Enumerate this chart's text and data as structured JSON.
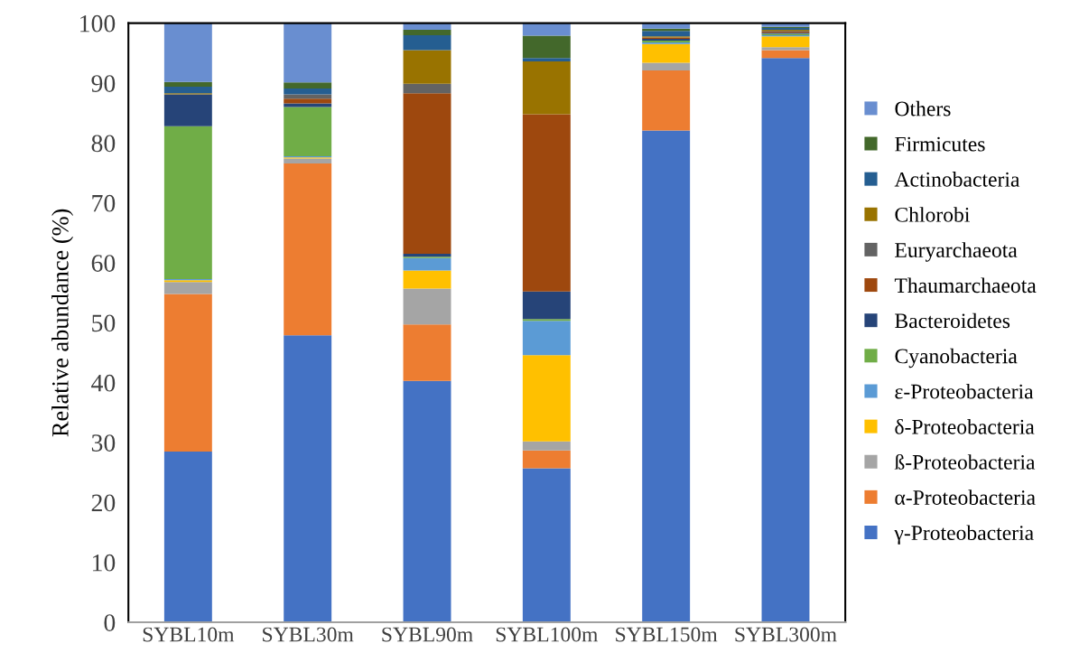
{
  "chart_data": {
    "type": "bar",
    "stacked": true,
    "ylabel": "Relative abundance (%)",
    "categories": [
      "SYBL10m",
      "SYBL30m",
      "SYBL90m",
      "SYBL100m",
      "SYBL150m",
      "SYBL300m"
    ],
    "ylim": [
      0,
      100
    ],
    "yticks": [
      0,
      10,
      20,
      30,
      40,
      50,
      60,
      70,
      80,
      90,
      100
    ],
    "grid": false,
    "legend": "right",
    "series": [
      {
        "name": "γ-Proteobacteria",
        "color": "#4472c4",
        "values": [
          28.5,
          47.9,
          40.3,
          25.7,
          82.1,
          94.2
        ]
      },
      {
        "name": "α-Proteobacteria",
        "color": "#ed7d31",
        "values": [
          26.3,
          28.7,
          9.4,
          3.0,
          10.0,
          1.3
        ]
      },
      {
        "name": "ß-Proteobacteria",
        "color": "#a5a5a5",
        "values": [
          2.0,
          0.8,
          6.0,
          1.5,
          1.3,
          0.5
        ]
      },
      {
        "name": "δ-Proteobacteria",
        "color": "#ffc000",
        "values": [
          0.3,
          0.2,
          3.0,
          14.4,
          3.1,
          1.8
        ]
      },
      {
        "name": "ε-Proteobacteria",
        "color": "#5b9bd5",
        "values": [
          0.2,
          0.2,
          2.1,
          5.7,
          0.3,
          0.2
        ]
      },
      {
        "name": "Cyanobacteria",
        "color": "#70ad47",
        "values": [
          25.5,
          8.2,
          0.2,
          0.3,
          0.3,
          0.2
        ]
      },
      {
        "name": "Bacteroidetes",
        "color": "#264478",
        "values": [
          5.3,
          0.6,
          0.5,
          4.6,
          0.3,
          0.2
        ]
      },
      {
        "name": "Thaumarchaeota",
        "color": "#9e480e",
        "values": [
          0,
          0.8,
          26.8,
          29.6,
          0.2,
          0.2
        ]
      },
      {
        "name": "Euryarchaeota",
        "color": "#636363",
        "values": [
          0,
          0.7,
          1.6,
          0,
          0,
          0.1
        ]
      },
      {
        "name": "Chlorobi",
        "color": "#997300",
        "values": [
          0.2,
          0,
          5.6,
          8.8,
          0.2,
          0.2
        ]
      },
      {
        "name": "Actinobacteria",
        "color": "#255e91",
        "values": [
          1.1,
          1.0,
          2.5,
          0.6,
          0.9,
          0.3
        ]
      },
      {
        "name": "Firmicutes",
        "color": "#43682b",
        "values": [
          0.8,
          1.0,
          0.9,
          3.7,
          0.4,
          0.2
        ]
      },
      {
        "name": "Others",
        "color": "#698ed0",
        "values": [
          9.8,
          9.9,
          1.1,
          2.1,
          1.0,
          0.6
        ]
      }
    ]
  }
}
